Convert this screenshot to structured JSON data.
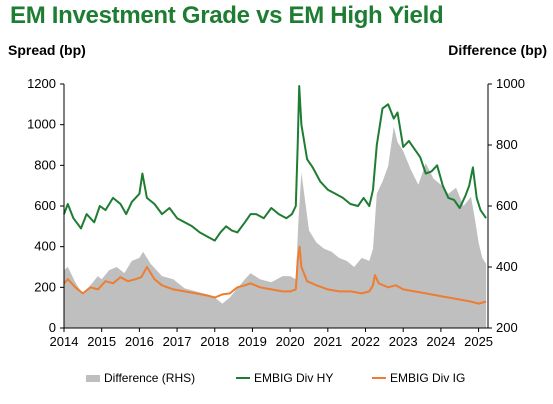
{
  "title": "EM Investment Grade vs EM High Yield",
  "chart_data": {
    "type": "line",
    "ylabel": "Spread (bp)",
    "y2label": "Difference (bp)",
    "ylim": [
      0,
      1200
    ],
    "y2lim": [
      200,
      1000
    ],
    "yticks": [
      "0",
      "200",
      "400",
      "600",
      "800",
      "1000",
      "1200"
    ],
    "y2ticks": [
      "200",
      "400",
      "600",
      "800",
      "1000"
    ],
    "xlim": [
      2014,
      2025.25
    ],
    "xticks": [
      "2014",
      "2015",
      "2016",
      "2017",
      "2018",
      "2019",
      "2020",
      "2021",
      "2022",
      "2023",
      "2024",
      "2025"
    ],
    "legend_position": "bottom",
    "series": [
      {
        "name": "Difference (RHS)",
        "axis": "right",
        "style": "area",
        "color": "#bfbfbf",
        "x": [
          2014.0,
          2014.1,
          2014.3,
          2014.5,
          2014.7,
          2014.9,
          2015.0,
          2015.2,
          2015.4,
          2015.6,
          2015.8,
          2016.0,
          2016.1,
          2016.3,
          2016.6,
          2016.9,
          2017.2,
          2017.5,
          2017.8,
          2018.0,
          2018.2,
          2018.4,
          2018.6,
          2018.8,
          2018.95,
          2019.2,
          2019.5,
          2019.8,
          2020.0,
          2020.15,
          2020.22,
          2020.3,
          2020.5,
          2020.7,
          2020.9,
          2021.1,
          2021.3,
          2021.5,
          2021.7,
          2021.9,
          2022.1,
          2022.2,
          2022.3,
          2022.45,
          2022.6,
          2022.75,
          2022.85,
          2023.0,
          2023.2,
          2023.4,
          2023.6,
          2023.8,
          2024.0,
          2024.2,
          2024.4,
          2024.6,
          2024.8,
          2024.9,
          2025.0,
          2025.1,
          2025.2
        ],
        "values": [
          390,
          400,
          350,
          310,
          340,
          370,
          360,
          390,
          400,
          380,
          420,
          430,
          450,
          410,
          370,
          360,
          330,
          320,
          310,
          300,
          280,
          300,
          330,
          360,
          380,
          360,
          350,
          370,
          370,
          360,
          550,
          710,
          520,
          480,
          460,
          450,
          430,
          420,
          400,
          430,
          420,
          460,
          640,
          680,
          730,
          860,
          810,
          780,
          720,
          670,
          740,
          690,
          670,
          640,
          660,
          600,
          630,
          560,
          480,
          430,
          410
        ]
      },
      {
        "name": "EMBIG Div HY",
        "axis": "left",
        "style": "line",
        "color": "#1e7d32",
        "x": [
          2014.0,
          2014.1,
          2014.25,
          2014.45,
          2014.6,
          2014.8,
          2014.95,
          2015.1,
          2015.3,
          2015.5,
          2015.65,
          2015.8,
          2016.0,
          2016.08,
          2016.2,
          2016.4,
          2016.6,
          2016.8,
          2017.0,
          2017.2,
          2017.4,
          2017.6,
          2017.8,
          2018.0,
          2018.15,
          2018.3,
          2018.45,
          2018.6,
          2018.8,
          2018.95,
          2019.1,
          2019.3,
          2019.5,
          2019.7,
          2019.9,
          2020.05,
          2020.15,
          2020.2,
          2020.24,
          2020.3,
          2020.45,
          2020.6,
          2020.8,
          2021.0,
          2021.2,
          2021.4,
          2021.6,
          2021.8,
          2021.95,
          2022.1,
          2022.2,
          2022.3,
          2022.45,
          2022.6,
          2022.75,
          2022.85,
          2023.0,
          2023.15,
          2023.3,
          2023.45,
          2023.6,
          2023.75,
          2023.9,
          2024.05,
          2024.2,
          2024.35,
          2024.5,
          2024.65,
          2024.75,
          2024.85,
          2024.95,
          2025.05,
          2025.2
        ],
        "values": [
          560,
          610,
          540,
          490,
          560,
          520,
          600,
          580,
          640,
          610,
          560,
          620,
          660,
          760,
          640,
          610,
          560,
          590,
          540,
          520,
          500,
          470,
          450,
          430,
          470,
          500,
          480,
          470,
          520,
          560,
          560,
          540,
          590,
          560,
          540,
          560,
          600,
          900,
          1190,
          1000,
          830,
          790,
          720,
          680,
          660,
          640,
          610,
          600,
          640,
          600,
          680,
          900,
          1080,
          1100,
          1030,
          1060,
          890,
          920,
          880,
          840,
          760,
          770,
          800,
          700,
          640,
          630,
          590,
          650,
          700,
          790,
          640,
          580,
          540
        ]
      },
      {
        "name": "EMBIG Div IG",
        "axis": "left",
        "style": "line",
        "color": "#ed7d31",
        "x": [
          2014.0,
          2014.1,
          2014.3,
          2014.5,
          2014.7,
          2014.9,
          2015.1,
          2015.3,
          2015.5,
          2015.7,
          2015.9,
          2016.05,
          2016.2,
          2016.4,
          2016.6,
          2016.9,
          2017.2,
          2017.5,
          2017.8,
          2018.0,
          2018.2,
          2018.4,
          2018.6,
          2018.8,
          2018.95,
          2019.2,
          2019.5,
          2019.8,
          2020.0,
          2020.15,
          2020.2,
          2020.25,
          2020.3,
          2020.45,
          2020.7,
          2021.0,
          2021.3,
          2021.6,
          2021.9,
          2022.1,
          2022.2,
          2022.25,
          2022.35,
          2022.6,
          2022.8,
          2023.0,
          2023.3,
          2023.6,
          2023.9,
          2024.2,
          2024.5,
          2024.8,
          2025.0,
          2025.2
        ],
        "values": [
          220,
          240,
          200,
          170,
          200,
          190,
          230,
          220,
          250,
          230,
          240,
          250,
          300,
          240,
          210,
          190,
          180,
          170,
          160,
          150,
          165,
          170,
          200,
          210,
          220,
          200,
          190,
          180,
          180,
          190,
          330,
          400,
          300,
          230,
          210,
          190,
          180,
          180,
          170,
          180,
          210,
          260,
          220,
          200,
          210,
          190,
          180,
          170,
          160,
          150,
          140,
          130,
          120,
          130
        ]
      }
    ]
  }
}
